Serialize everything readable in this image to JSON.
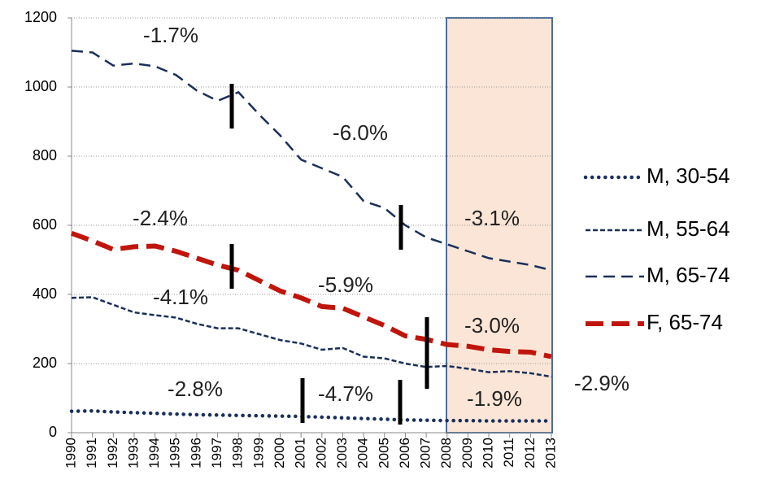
{
  "chart_data": {
    "type": "line",
    "categories": [
      "1990",
      "1991",
      "1992",
      "1993",
      "1994",
      "1995",
      "1996",
      "1997",
      "1998",
      "1999",
      "2000",
      "2001",
      "2002",
      "2003",
      "2004",
      "2005",
      "2006",
      "2007",
      "2008",
      "2009",
      "2010",
      "2011",
      "2012",
      "2013"
    ],
    "series": [
      {
        "name": "M, 30-54",
        "color": "#1a2f5a",
        "line_style": "dotted",
        "values": [
          62,
          63,
          60,
          58,
          56,
          54,
          52,
          51,
          50,
          49,
          48,
          47,
          45,
          43,
          41,
          39,
          37,
          36,
          35,
          35,
          34,
          34,
          34,
          34
        ]
      },
      {
        "name": "M, 55-64",
        "color": "#1a2f5a",
        "line_style": "short-dash",
        "values": [
          390,
          392,
          370,
          348,
          340,
          333,
          315,
          302,
          302,
          285,
          268,
          258,
          240,
          245,
          220,
          215,
          200,
          190,
          193,
          185,
          175,
          178,
          172,
          162
        ]
      },
      {
        "name": "M, 65-74",
        "color": "#1a2f5a",
        "line_style": "long-dash",
        "values": [
          1105,
          1100,
          1062,
          1068,
          1060,
          1035,
          990,
          960,
          985,
          920,
          860,
          790,
          765,
          740,
          670,
          650,
          600,
          565,
          545,
          525,
          505,
          495,
          485,
          470
        ]
      },
      {
        "name": "F, 65-74",
        "color": "#c0150c",
        "line_style": "heavy-dash",
        "values": [
          577,
          555,
          530,
          538,
          540,
          525,
          505,
          485,
          470,
          440,
          410,
          390,
          365,
          360,
          335,
          310,
          280,
          270,
          255,
          250,
          240,
          235,
          233,
          220
        ]
      }
    ],
    "annotations": [
      "-1.7%",
      "-6.0%",
      "-2.4%",
      "-3.1%",
      "-4.1%",
      "-5.9%",
      "-3.0%",
      "-2.8%",
      "-4.7%",
      "-1.9%",
      "-2.9%"
    ],
    "ylim": [
      0,
      1200
    ],
    "yticks": [
      0,
      200,
      400,
      600,
      800,
      1000,
      1200
    ],
    "grid": true
  }
}
